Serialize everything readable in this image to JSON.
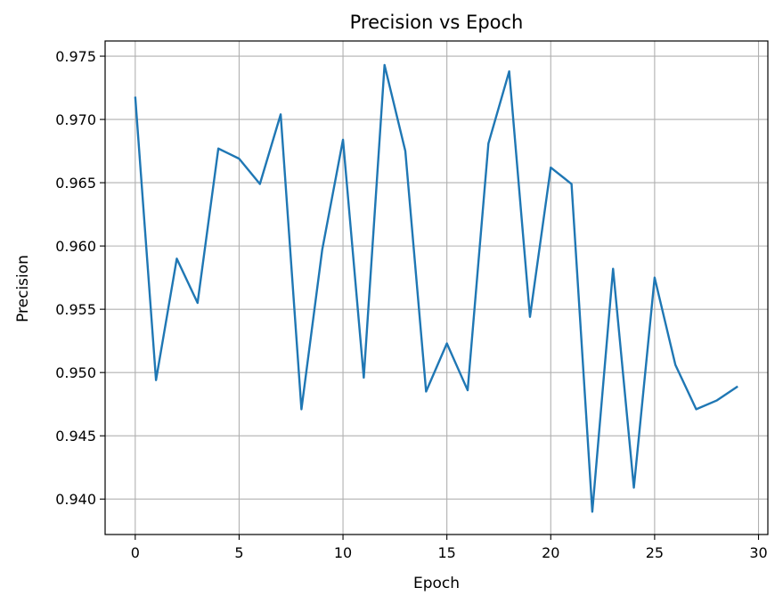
{
  "chart_data": {
    "type": "line",
    "title": "Precision vs Epoch",
    "xlabel": "Epoch",
    "ylabel": "Precision",
    "xlim": [
      -1.45,
      30.45
    ],
    "ylim": [
      0.9372,
      0.9762
    ],
    "xticks": [
      0,
      5,
      10,
      15,
      20,
      25,
      30
    ],
    "yticks": [
      0.94,
      0.945,
      0.95,
      0.955,
      0.96,
      0.965,
      0.97,
      0.975
    ],
    "xtick_labels": [
      "0",
      "5",
      "10",
      "15",
      "20",
      "25",
      "30"
    ],
    "ytick_labels": [
      "0.940",
      "0.945",
      "0.950",
      "0.955",
      "0.960",
      "0.965",
      "0.970",
      "0.975"
    ],
    "grid": true,
    "colors": {
      "line": "#1f77b4",
      "grid": "#b0b0b0",
      "axes": "#000000"
    },
    "series": [
      {
        "x": [
          0,
          1,
          2,
          3,
          4,
          5,
          6,
          7,
          8,
          9,
          10,
          11,
          12,
          13,
          14,
          15,
          16,
          17,
          18,
          19,
          20,
          21,
          22,
          23,
          24,
          25,
          26,
          27,
          28,
          29
        ],
        "values": [
          0.9718,
          0.9494,
          0.959,
          0.9555,
          0.9677,
          0.9669,
          0.9649,
          0.9704,
          0.9471,
          0.9597,
          0.9684,
          0.9496,
          0.9743,
          0.9675,
          0.9485,
          0.9523,
          0.9486,
          0.9681,
          0.9738,
          0.9544,
          0.9662,
          0.9649,
          0.939,
          0.9582,
          0.9409,
          0.9575,
          0.9506,
          0.9471,
          0.9478,
          0.9489
        ]
      }
    ]
  }
}
